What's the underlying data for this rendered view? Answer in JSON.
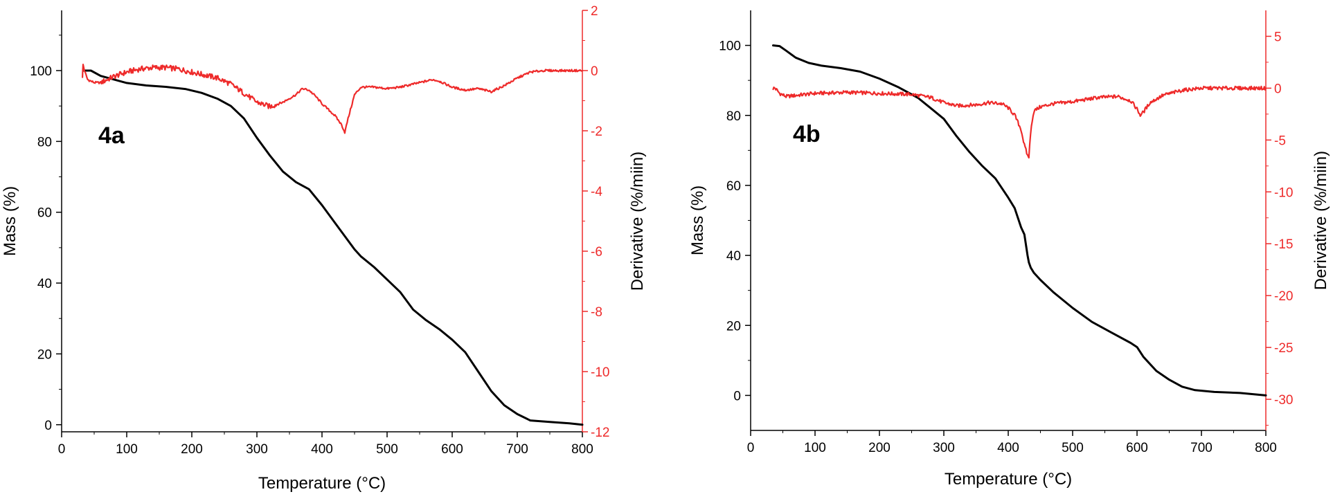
{
  "colors": {
    "mass": "#000000",
    "derivative": "#ee2a2a",
    "axis": "#000000"
  },
  "chart_data": [
    {
      "type": "line",
      "panel_label": "4a",
      "title": "",
      "xlabel": "Temperature (°C)",
      "ylabel": "Mass (%)",
      "y2label": "Derivative (%/miin)",
      "xlim": [
        0,
        800
      ],
      "ylim": [
        -2,
        117
      ],
      "y2lim": [
        -12,
        2
      ],
      "xticks": [
        0,
        100,
        200,
        300,
        400,
        500,
        600,
        700,
        800
      ],
      "yticks": [
        0,
        20,
        40,
        60,
        80,
        100
      ],
      "y2ticks": [
        2,
        0,
        -2,
        -4,
        -6,
        -8,
        -10,
        -12
      ],
      "series": [
        {
          "name": "Mass",
          "axis": "left",
          "x": [
            33,
            45,
            60,
            80,
            100,
            130,
            160,
            190,
            215,
            240,
            260,
            280,
            300,
            320,
            340,
            360,
            380,
            400,
            420,
            440,
            450,
            460,
            480,
            500,
            520,
            530,
            540,
            560,
            580,
            600,
            620,
            640,
            660,
            680,
            700,
            720,
            750,
            780,
            800
          ],
          "y": [
            100,
            100,
            98.5,
            97.5,
            96.5,
            95.8,
            95.4,
            94.8,
            93.7,
            92,
            90,
            86.5,
            81,
            76,
            71.5,
            68.5,
            66.5,
            62,
            57,
            52,
            49.5,
            47.5,
            44.5,
            41,
            37.5,
            35,
            32.5,
            29.5,
            27,
            24,
            20.5,
            15,
            9.5,
            5.5,
            3,
            1.2,
            0.8,
            0.4,
            0
          ]
        },
        {
          "name": "Derivative",
          "axis": "right",
          "x": [
            32,
            33,
            35,
            40,
            50,
            60,
            80,
            100,
            120,
            140,
            160,
            180,
            200,
            220,
            240,
            260,
            280,
            300,
            320,
            340,
            360,
            370,
            380,
            390,
            400,
            410,
            420,
            430,
            435,
            440,
            450,
            460,
            480,
            500,
            520,
            540,
            560,
            570,
            580,
            600,
            620,
            640,
            660,
            680,
            700,
            720,
            740,
            760,
            780,
            800
          ],
          "y": [
            -0.2,
            0.2,
            0,
            -0.3,
            -0.4,
            -0.4,
            -0.2,
            -0.05,
            0.05,
            0.1,
            0.1,
            0.05,
            -0.05,
            -0.15,
            -0.25,
            -0.45,
            -0.75,
            -1.05,
            -1.2,
            -1.05,
            -0.8,
            -0.6,
            -0.65,
            -0.85,
            -1.1,
            -1.3,
            -1.5,
            -1.8,
            -2.05,
            -1.6,
            -0.8,
            -0.55,
            -0.55,
            -0.6,
            -0.55,
            -0.45,
            -0.35,
            -0.3,
            -0.35,
            -0.55,
            -0.65,
            -0.6,
            -0.7,
            -0.5,
            -0.25,
            -0.05,
            0,
            0,
            0,
            0
          ]
        }
      ]
    },
    {
      "type": "line",
      "panel_label": "4b",
      "title": "",
      "xlabel": "Temperature (°C)",
      "ylabel": "Mass (%)",
      "y2label": "Derivative (%/miin)",
      "xlim": [
        0,
        800
      ],
      "ylim": [
        -10,
        110
      ],
      "y2lim": [
        -33,
        7.5
      ],
      "xticks": [
        0,
        100,
        200,
        300,
        400,
        500,
        600,
        700,
        800
      ],
      "yticks": [
        0,
        20,
        40,
        60,
        80,
        100
      ],
      "y2ticks": [
        5,
        0,
        -5,
        -10,
        -15,
        -20,
        -25,
        -30
      ],
      "series": [
        {
          "name": "Mass",
          "axis": "left",
          "x": [
            35,
            45,
            55,
            70,
            90,
            110,
            140,
            170,
            200,
            230,
            260,
            280,
            300,
            320,
            340,
            360,
            380,
            400,
            410,
            420,
            425,
            430,
            432,
            435,
            440,
            450,
            470,
            500,
            530,
            560,
            590,
            600,
            610,
            630,
            650,
            670,
            690,
            720,
            760,
            800
          ],
          "y": [
            100,
            99.8,
            98.5,
            96.5,
            95,
            94.2,
            93.5,
            92.5,
            90.5,
            88,
            85,
            82,
            79,
            74,
            69.5,
            65.5,
            62,
            56.5,
            53.5,
            48,
            46,
            40,
            38,
            36.5,
            35,
            33,
            29.5,
            25,
            21,
            18,
            15,
            13.8,
            11,
            7,
            4.5,
            2.5,
            1.5,
            1,
            0.7,
            0
          ]
        },
        {
          "name": "Derivative",
          "axis": "right",
          "x": [
            35,
            38,
            45,
            55,
            70,
            100,
            150,
            200,
            250,
            280,
            300,
            320,
            350,
            370,
            390,
            400,
            410,
            420,
            425,
            430,
            432,
            436,
            440,
            450,
            470,
            500,
            540,
            570,
            590,
            600,
            605,
            610,
            620,
            640,
            670,
            700,
            750,
            800
          ],
          "y": [
            0,
            0,
            -0.5,
            -0.8,
            -0.7,
            -0.5,
            -0.4,
            -0.5,
            -0.6,
            -0.9,
            -1.4,
            -1.7,
            -1.6,
            -1.4,
            -1.5,
            -1.9,
            -2.6,
            -4,
            -5.5,
            -6.5,
            -6.6,
            -3.5,
            -2.2,
            -1.8,
            -1.5,
            -1.3,
            -0.9,
            -0.8,
            -1.2,
            -2,
            -2.6,
            -2.3,
            -1.4,
            -0.7,
            -0.2,
            0,
            0,
            0
          ]
        }
      ]
    }
  ]
}
